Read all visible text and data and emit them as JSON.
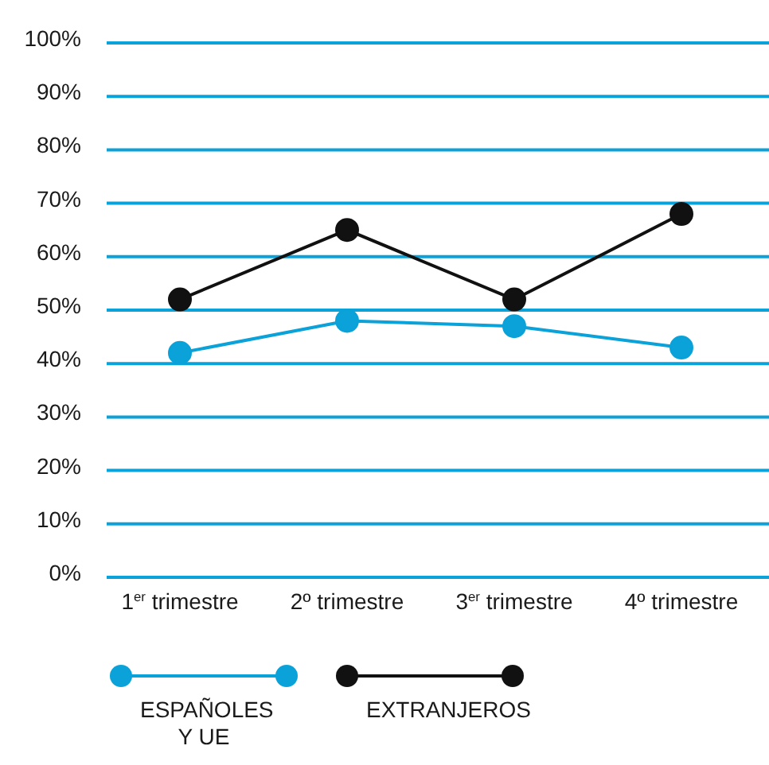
{
  "chart_data": {
    "type": "line",
    "categories": [
      "1$^{er}$ trimestre",
      "2º trimestre",
      "3$^{er}$ trimestre",
      "4º trimestre"
    ],
    "series": [
      {
        "name": "ESPAÑOLES Y UE",
        "color": "#0aa2d8",
        "values": [
          42,
          48,
          47,
          43
        ]
      },
      {
        "name": "EXTRANJEROS",
        "color": "#111111",
        "values": [
          52,
          65,
          52,
          68
        ]
      }
    ],
    "ylim": [
      0,
      100
    ],
    "yticks": [
      {
        "value": 0,
        "label": "0%"
      },
      {
        "value": 10,
        "label": "10%"
      },
      {
        "value": 20,
        "label": "20%"
      },
      {
        "value": 30,
        "label": "30%"
      },
      {
        "value": 40,
        "label": "40%"
      },
      {
        "value": 50,
        "label": "50%"
      },
      {
        "value": 60,
        "label": "60%"
      },
      {
        "value": 70,
        "label": "70%"
      },
      {
        "value": 80,
        "label": "80%"
      },
      {
        "value": 90,
        "label": "90%"
      },
      {
        "value": 100,
        "label": "100%"
      }
    ],
    "grid": "y",
    "legend": "bottom",
    "marker": "circle",
    "line_style": "solid"
  }
}
